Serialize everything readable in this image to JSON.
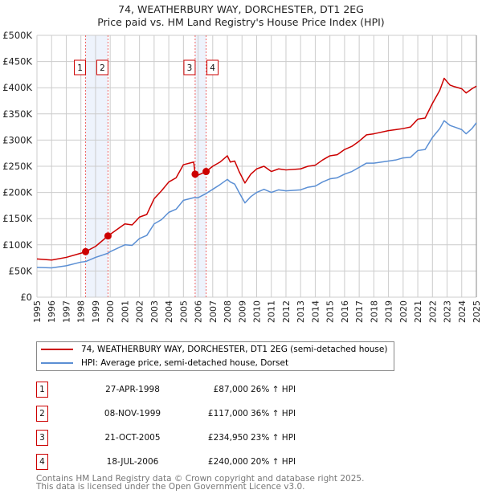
{
  "chart_data": {
    "type": "line",
    "title": "74, WEATHERBURY WAY, DORCHESTER, DT1 2EG",
    "subtitle": "Price paid vs. HM Land Registry's House Price Index (HPI)",
    "xlim": [
      1995,
      2025
    ],
    "ylim": [
      0,
      500000
    ],
    "x_ticks": [
      "1995",
      "1996",
      "1997",
      "1998",
      "1999",
      "2000",
      "2001",
      "2002",
      "2003",
      "2004",
      "2005",
      "2006",
      "2007",
      "2008",
      "2009",
      "2010",
      "2011",
      "2012",
      "2013",
      "2014",
      "2015",
      "2016",
      "2017",
      "2018",
      "2019",
      "2020",
      "2021",
      "2022",
      "2023",
      "2024",
      "2025"
    ],
    "y_ticks": [
      {
        "v": 0,
        "label": "£0"
      },
      {
        "v": 50000,
        "label": "£50K"
      },
      {
        "v": 100000,
        "label": "£100K"
      },
      {
        "v": 150000,
        "label": "£150K"
      },
      {
        "v": 200000,
        "label": "£200K"
      },
      {
        "v": 250000,
        "label": "£250K"
      },
      {
        "v": 300000,
        "label": "£300K"
      },
      {
        "v": 350000,
        "label": "£350K"
      },
      {
        "v": 400000,
        "label": "£400K"
      },
      {
        "v": 450000,
        "label": "£450K"
      },
      {
        "v": 500000,
        "label": "£500K"
      }
    ],
    "grid": true,
    "series": [
      {
        "name": "74, WEATHERBURY WAY, DORCHESTER, DT1 2EG (semi-detached house)",
        "color": "#cc0000",
        "x": [
          1995,
          1996,
          1997,
          1998,
          1998.32,
          1999,
          1999.85,
          2000,
          2001,
          2001.5,
          2002,
          2002.5,
          2003,
          2003.5,
          2004,
          2004.5,
          2005,
          2005.7,
          2005.8,
          2006,
          2006.55,
          2007,
          2007.5,
          2008,
          2008.2,
          2008.5,
          2008.8,
          2009.2,
          2009.6,
          2010,
          2010.5,
          2011,
          2011.5,
          2012,
          2013,
          2013.5,
          2014,
          2014.5,
          2015,
          2015.5,
          2016,
          2016.5,
          2017,
          2017.5,
          2018,
          2019,
          2019.5,
          2020,
          2020.5,
          2021,
          2021.5,
          2022,
          2022.5,
          2022.8,
          2023.2,
          2023.5,
          2024,
          2024.3,
          2024.7,
          2025
        ],
        "y": [
          73000,
          71000,
          76000,
          84000,
          87000,
          97000,
          117000,
          120000,
          140000,
          138000,
          153000,
          158000,
          188000,
          203000,
          220000,
          228000,
          253000,
          258000,
          235000,
          233000,
          240000,
          250000,
          258000,
          270000,
          258000,
          260000,
          240000,
          218000,
          235000,
          245000,
          250000,
          240000,
          245000,
          243000,
          245000,
          250000,
          252000,
          262000,
          270000,
          272000,
          282000,
          288000,
          298000,
          310000,
          312000,
          318000,
          320000,
          322000,
          325000,
          340000,
          342000,
          370000,
          395000,
          418000,
          405000,
          402000,
          398000,
          390000,
          398000,
          403000
        ]
      },
      {
        "name": "HPI: Average price, semi-detached house, Dorset",
        "color": "#5b8fd4",
        "x": [
          1995,
          1996,
          1997,
          1998,
          1998.32,
          1999,
          1999.85,
          2000,
          2001,
          2001.5,
          2002,
          2002.5,
          2003,
          2003.5,
          2004,
          2004.5,
          2005,
          2005.7,
          2005.8,
          2006,
          2006.55,
          2007,
          2007.5,
          2008,
          2008.2,
          2008.5,
          2008.8,
          2009.2,
          2009.6,
          2010,
          2010.5,
          2011,
          2011.5,
          2012,
          2013,
          2013.5,
          2014,
          2014.5,
          2015,
          2015.5,
          2016,
          2016.5,
          2017,
          2017.5,
          2018,
          2019,
          2019.5,
          2020,
          2020.5,
          2021,
          2021.5,
          2022,
          2022.5,
          2022.8,
          2023.2,
          2023.5,
          2024,
          2024.3,
          2024.7,
          2025
        ],
        "y": [
          57000,
          56000,
          60000,
          67000,
          68000,
          76000,
          84000,
          87000,
          100000,
          99000,
          112000,
          118000,
          140000,
          148000,
          162000,
          168000,
          185000,
          190000,
          190000,
          190000,
          198000,
          206000,
          215000,
          225000,
          220000,
          216000,
          200000,
          180000,
          192000,
          200000,
          206000,
          200000,
          205000,
          203000,
          205000,
          210000,
          212000,
          220000,
          226000,
          228000,
          235000,
          240000,
          248000,
          256000,
          256000,
          260000,
          262000,
          266000,
          267000,
          280000,
          282000,
          305000,
          322000,
          337000,
          328000,
          325000,
          320000,
          312000,
          322000,
          333000
        ]
      }
    ],
    "sales": [
      {
        "label": "1",
        "x": 1998.32,
        "price": 87000
      },
      {
        "label": "2",
        "x": 1999.85,
        "price": 117000
      },
      {
        "label": "3",
        "x": 2005.8,
        "price": 234950
      },
      {
        "label": "4",
        "x": 2006.55,
        "price": 240000
      }
    ],
    "shaded_ranges": [
      [
        1998.32,
        1999.85
      ],
      [
        2005.8,
        2006.55
      ]
    ],
    "legend_position": "below"
  },
  "legend": {
    "property": "74, WEATHERBURY WAY, DORCHESTER, DT1 2EG (semi-detached house)",
    "hpi": "HPI: Average price, semi-detached house, Dorset"
  },
  "transactions": [
    {
      "num": "1",
      "date": "27-APR-1998",
      "price": "£87,000",
      "hpi": "26% ↑ HPI"
    },
    {
      "num": "2",
      "date": "08-NOV-1999",
      "price": "£117,000",
      "hpi": "36% ↑ HPI"
    },
    {
      "num": "3",
      "date": "21-OCT-2005",
      "price": "£234,950",
      "hpi": "23% ↑ HPI"
    },
    {
      "num": "4",
      "date": "18-JUL-2006",
      "price": "£240,000",
      "hpi": "20% ↑ HPI"
    }
  ],
  "footer": {
    "line1": "Contains HM Land Registry data © Crown copyright and database right 2025.",
    "line2": "This data is licensed under the Open Government Licence v3.0."
  }
}
